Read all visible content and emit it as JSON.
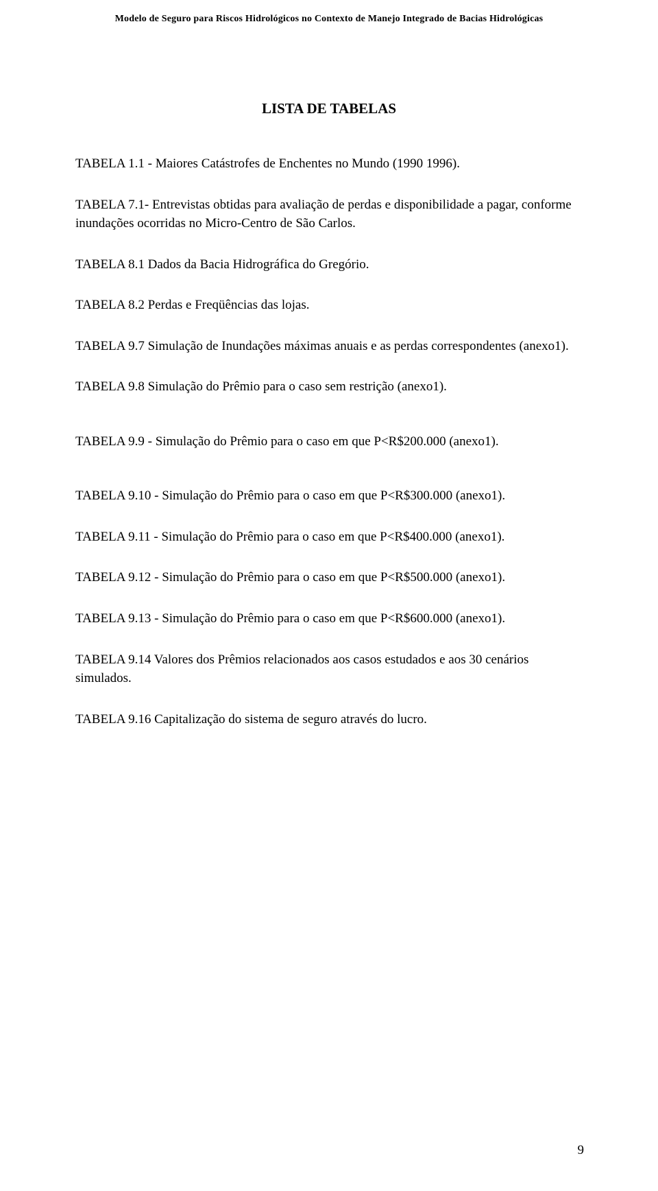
{
  "header": {
    "running_title": "Modelo de Seguro para Riscos Hidrológicos no Contexto de Manejo Integrado de Bacias Hidrológicas"
  },
  "title": "LISTA DE TABELAS",
  "entries": [
    "TABELA 1.1 - Maiores Catástrofes de Enchentes no Mundo (1990 1996).",
    "TABELA 7.1- Entrevistas obtidas para avaliação de perdas e disponibilidade a pagar, conforme inundações ocorridas no Micro-Centro de São Carlos.",
    "TABELA 8.1 Dados da Bacia Hidrográfica do Gregório.",
    "TABELA 8.2 Perdas e Freqüências das lojas.",
    "TABELA 9.7 Simulação de Inundações máximas anuais e as perdas correspondentes (anexo1).",
    "TABELA 9.8 Simulação do Prêmio para o caso sem restrição (anexo1).",
    "TABELA 9.9 - Simulação do Prêmio para o caso em que P<R$200.000 (anexo1).",
    "TABELA 9.10 - Simulação do Prêmio para o caso em que P<R$300.000 (anexo1).",
    "TABELA 9.11 - Simulação do Prêmio para o caso em que P<R$400.000 (anexo1).",
    "TABELA 9.12 - Simulação do Prêmio para o caso em que P<R$500.000 (anexo1).",
    "TABELA 9.13 - Simulação do Prêmio para o caso em que P<R$600.000 (anexo1).",
    "TABELA 9.14 Valores dos Prêmios relacionados aos casos estudados e aos 30 cenários simulados.",
    "TABELA 9.16 Capitalização do sistema de seguro através do lucro."
  ],
  "page_number": "9"
}
